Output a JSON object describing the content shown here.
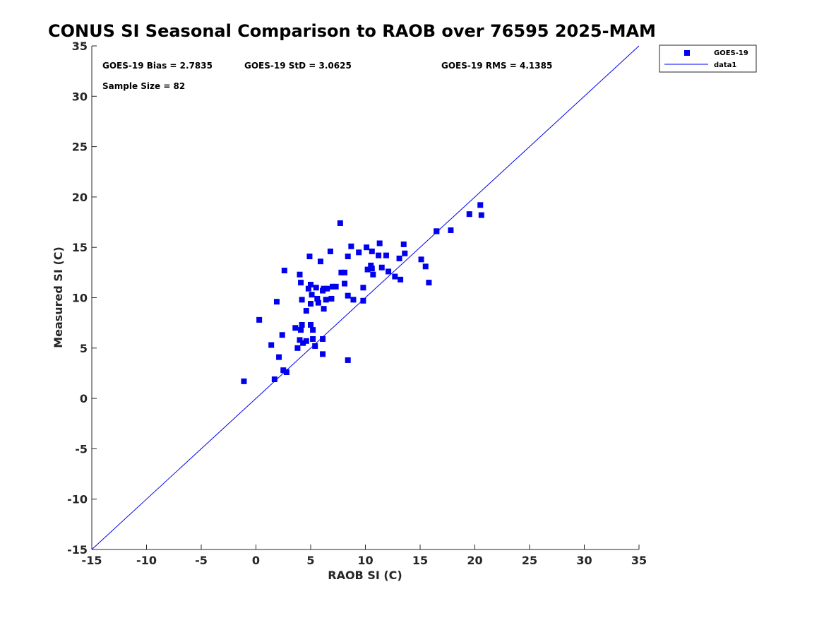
{
  "chart_data": {
    "type": "scatter",
    "title": "CONUS SI Seasonal Comparison to RAOB over 76595 2025-MAM",
    "xlabel": "RAOB SI (C)",
    "ylabel": "Measured SI (C)",
    "xlim": [
      -15,
      35
    ],
    "ylim": [
      -15,
      35
    ],
    "xticks": [
      "-15",
      "-10",
      "-5",
      "0",
      "5",
      "10",
      "15",
      "20",
      "25",
      "30",
      "35"
    ],
    "yticks": [
      "-15",
      "-10",
      "-5",
      "0",
      "5",
      "10",
      "15",
      "20",
      "25",
      "30",
      "35"
    ],
    "grid": false,
    "legend_position": "top-right",
    "colors": {
      "marker": "#0000ee",
      "line": "#0000ee",
      "axis": "#262626"
    },
    "annotations": {
      "bias": "GOES-19 Bias = 2.7835",
      "std": "GOES-19 StD = 3.0625",
      "rms": "GOES-19 RMS = 4.1385",
      "sample": "Sample Size = 82"
    },
    "series": [
      {
        "name": "GOES-19",
        "marker": "square",
        "points": [
          [
            -1.1,
            1.7
          ],
          [
            0.3,
            7.8
          ],
          [
            1.4,
            5.3
          ],
          [
            1.7,
            1.9
          ],
          [
            1.9,
            9.6
          ],
          [
            2.1,
            4.1
          ],
          [
            2.4,
            6.3
          ],
          [
            2.5,
            2.8
          ],
          [
            2.6,
            12.7
          ],
          [
            2.8,
            2.6
          ],
          [
            3.6,
            7.0
          ],
          [
            3.8,
            5.0
          ],
          [
            4.0,
            12.3
          ],
          [
            4.0,
            5.8
          ],
          [
            4.1,
            6.8
          ],
          [
            4.1,
            11.5
          ],
          [
            4.2,
            9.8
          ],
          [
            4.2,
            7.3
          ],
          [
            4.3,
            5.5
          ],
          [
            4.6,
            5.7
          ],
          [
            4.6,
            8.7
          ],
          [
            4.8,
            10.9
          ],
          [
            4.9,
            14.1
          ],
          [
            5.0,
            9.4
          ],
          [
            5.0,
            11.3
          ],
          [
            5.0,
            7.3
          ],
          [
            5.1,
            10.3
          ],
          [
            5.2,
            6.8
          ],
          [
            5.2,
            5.9
          ],
          [
            5.4,
            5.2
          ],
          [
            5.5,
            11.0
          ],
          [
            5.6,
            9.9
          ],
          [
            5.7,
            9.5
          ],
          [
            5.9,
            13.6
          ],
          [
            6.1,
            10.7
          ],
          [
            6.1,
            5.9
          ],
          [
            6.1,
            4.4
          ],
          [
            6.2,
            10.9
          ],
          [
            6.2,
            8.9
          ],
          [
            6.4,
            9.8
          ],
          [
            6.5,
            10.9
          ],
          [
            6.8,
            14.6
          ],
          [
            6.9,
            9.9
          ],
          [
            7.0,
            11.1
          ],
          [
            7.3,
            11.1
          ],
          [
            7.7,
            17.4
          ],
          [
            7.8,
            12.5
          ],
          [
            8.1,
            12.5
          ],
          [
            8.1,
            11.4
          ],
          [
            8.4,
            14.1
          ],
          [
            8.4,
            10.2
          ],
          [
            8.4,
            3.8
          ],
          [
            8.7,
            15.1
          ],
          [
            8.9,
            9.8
          ],
          [
            9.4,
            14.5
          ],
          [
            9.8,
            11.0
          ],
          [
            9.8,
            9.7
          ],
          [
            10.1,
            15.0
          ],
          [
            10.2,
            12.8
          ],
          [
            10.5,
            13.2
          ],
          [
            10.6,
            14.6
          ],
          [
            10.6,
            12.9
          ],
          [
            10.7,
            12.3
          ],
          [
            11.2,
            14.2
          ],
          [
            11.3,
            15.4
          ],
          [
            11.5,
            13.0
          ],
          [
            11.9,
            14.2
          ],
          [
            12.1,
            12.6
          ],
          [
            12.7,
            12.1
          ],
          [
            13.1,
            13.9
          ],
          [
            13.2,
            11.8
          ],
          [
            13.5,
            15.3
          ],
          [
            13.6,
            14.4
          ],
          [
            15.1,
            13.8
          ],
          [
            15.5,
            13.1
          ],
          [
            15.8,
            11.5
          ],
          [
            16.5,
            16.6
          ],
          [
            17.8,
            16.7
          ],
          [
            19.5,
            18.3
          ],
          [
            20.5,
            19.2
          ],
          [
            20.6,
            18.2
          ],
          [
            16.5,
            16.6
          ]
        ]
      },
      {
        "name": "data1",
        "style": "line",
        "points": [
          [
            -15,
            -15
          ],
          [
            35,
            35
          ]
        ]
      }
    ]
  }
}
